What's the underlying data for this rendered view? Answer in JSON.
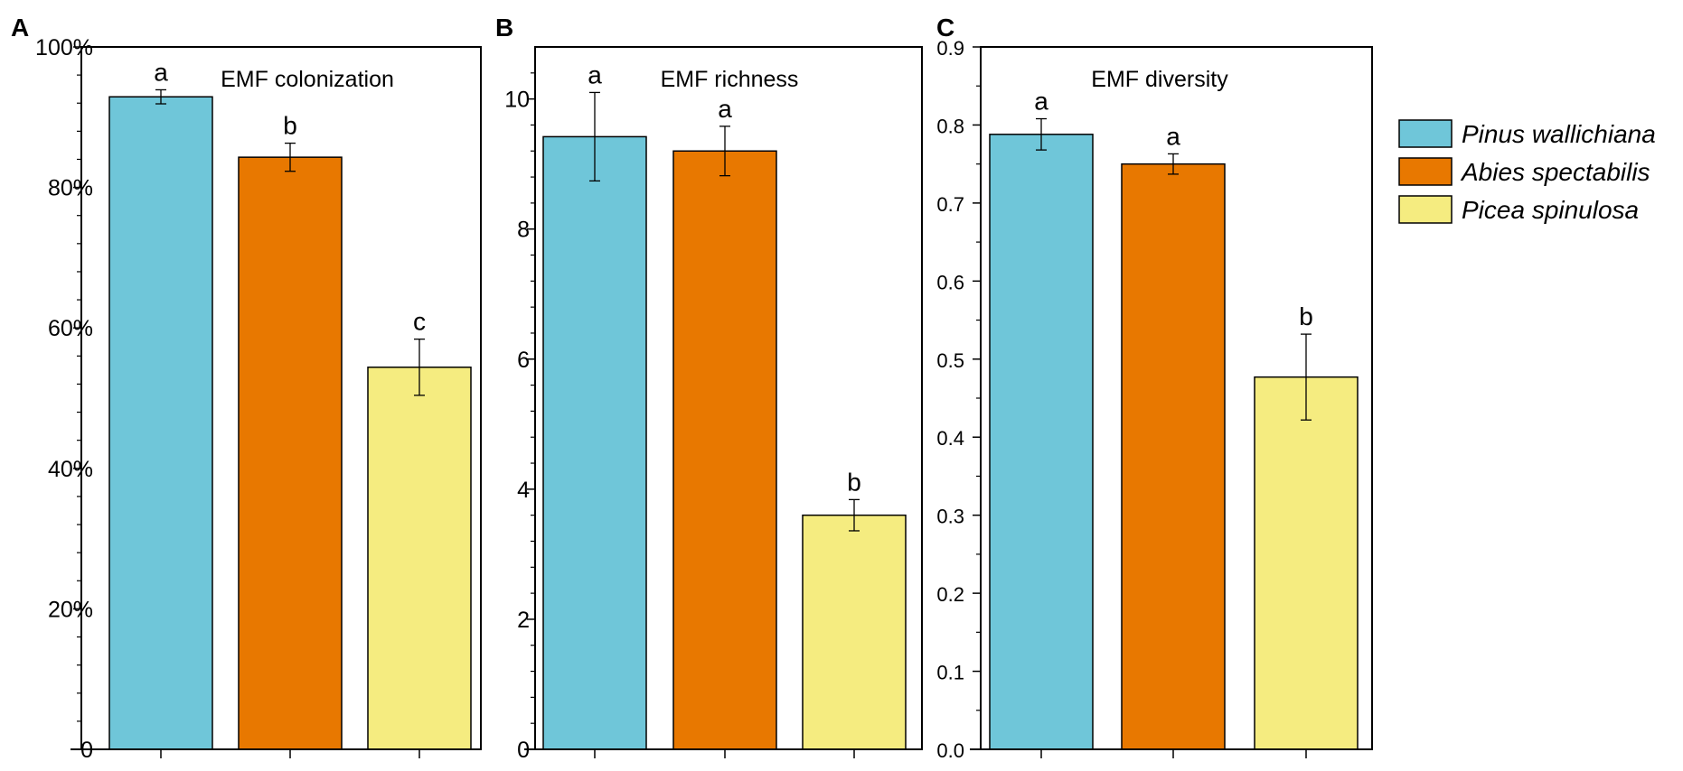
{
  "colors": {
    "Pinus wallichiana": "#6fc6d9",
    "Abies spectabilis": "#e87800",
    "Picea spinulosa": "#f5ec80",
    "axis": "#000000"
  },
  "legend": [
    "Pinus wallichiana",
    "Abies spectabilis",
    "Picea spinulosa"
  ],
  "chart_data": [
    {
      "panel": "A",
      "type": "bar",
      "title": "EMF colonization",
      "categories": [
        "Pinus wallichiana",
        "Abies spectabilis",
        "Picea spinulosa"
      ],
      "values": [
        92.9,
        84.3,
        54.4
      ],
      "errors": [
        1.0,
        2.0,
        4.0
      ],
      "significance": [
        "a",
        "b",
        "c"
      ],
      "ylim": [
        0,
        100
      ],
      "yticks": [
        0,
        20,
        40,
        60,
        80,
        100
      ],
      "ytick_labels": [
        "0",
        "20%",
        "40%",
        "60%",
        "80%",
        "100%"
      ],
      "xlabel": "",
      "ylabel": ""
    },
    {
      "panel": "B",
      "type": "bar",
      "title": "EMF richness",
      "categories": [
        "Pinus wallichiana",
        "Abies spectabilis",
        "Picea spinulosa"
      ],
      "values": [
        9.42,
        9.2,
        3.6
      ],
      "errors": [
        0.68,
        0.38,
        0.24
      ],
      "significance": [
        "a",
        "a",
        "b"
      ],
      "ylim": [
        0,
        10.8
      ],
      "yticks": [
        0,
        2,
        4,
        6,
        8,
        10
      ],
      "ytick_labels": [
        "0",
        "2",
        "4",
        "6",
        "8",
        "10"
      ],
      "xlabel": "",
      "ylabel": ""
    },
    {
      "panel": "C",
      "type": "bar",
      "title": "EMF diversity",
      "categories": [
        "Pinus wallichiana",
        "Abies spectabilis",
        "Picea spinulosa"
      ],
      "values": [
        0.788,
        0.75,
        0.477
      ],
      "errors": [
        0.02,
        0.013,
        0.055
      ],
      "significance": [
        "a",
        "a",
        "b"
      ],
      "ylim": [
        0,
        0.9
      ],
      "yticks": [
        0,
        0.1,
        0.2,
        0.3,
        0.4,
        0.5,
        0.6,
        0.7,
        0.8,
        0.9
      ],
      "ytick_labels": [
        "0.0",
        "0.1",
        "0.2",
        "0.3",
        "0.4",
        "0.5",
        "0.6",
        "0.7",
        "0.8",
        "0.9"
      ],
      "xlabel": "",
      "ylabel": ""
    }
  ]
}
